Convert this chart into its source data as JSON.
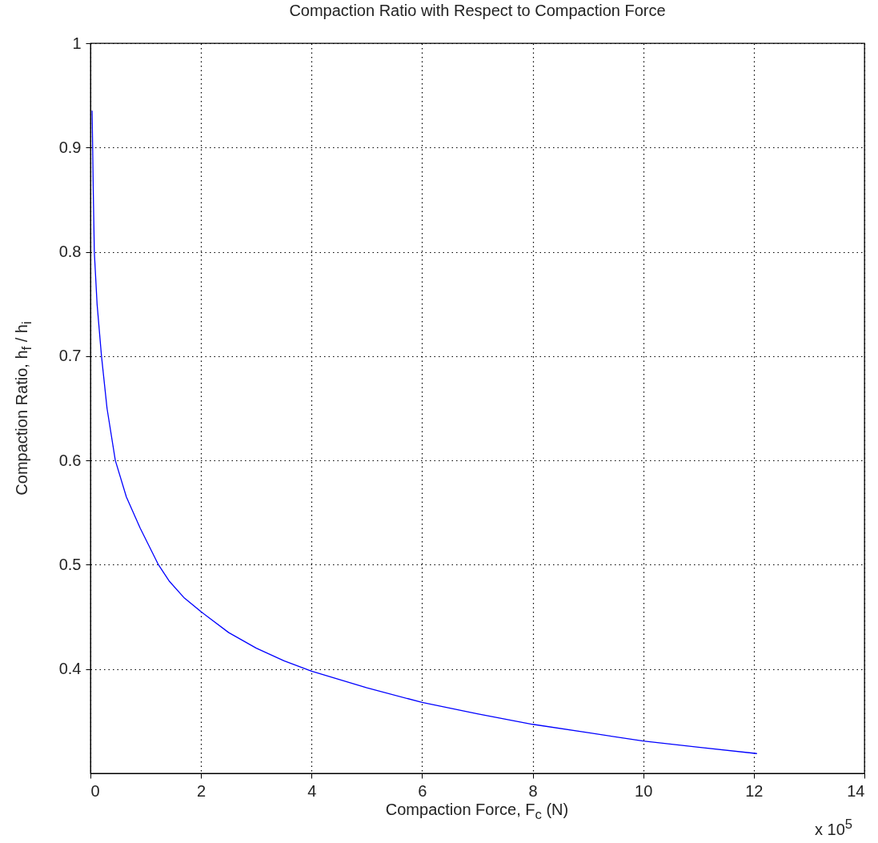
{
  "chart_data": {
    "type": "line",
    "title": "Compaction Ratio with Respect to Compaction Force",
    "xlabel": "Compaction Force, F$_{c}$ (N)",
    "ylabel": "Compaction Ratio, h$_{f}$ / h$_{i}$",
    "annotations": [
      "x 10$^{5}$"
    ],
    "series": [
      {
        "color": "#0000ff",
        "x": [
          0.03,
          0.04,
          0.05,
          0.07,
          0.12,
          0.2,
          0.3,
          0.45,
          0.65,
          0.9,
          1.23,
          1.43,
          1.7,
          2,
          2.5,
          3,
          3.5,
          4,
          5,
          6,
          7,
          8,
          9,
          10,
          11,
          12.05
        ],
        "values": [
          0.935,
          0.9,
          0.862,
          0.8,
          0.75,
          0.7,
          0.65,
          0.6,
          0.565,
          0.535,
          0.5,
          0.484,
          0.468,
          0.455,
          0.435,
          0.42,
          0.408,
          0.398,
          0.382,
          0.368,
          0.357,
          0.347,
          0.339,
          0.331,
          0.325,
          0.319
        ]
      }
    ],
    "xlim": [
      0,
      14
    ],
    "xticks": [
      0,
      2,
      4,
      6,
      8,
      10,
      12,
      14
    ],
    "ylim": [
      0.3,
      1
    ],
    "yticks": [
      0.4,
      0.5,
      0.6,
      0.7,
      0.8,
      0.9,
      1
    ],
    "grid": true
  }
}
